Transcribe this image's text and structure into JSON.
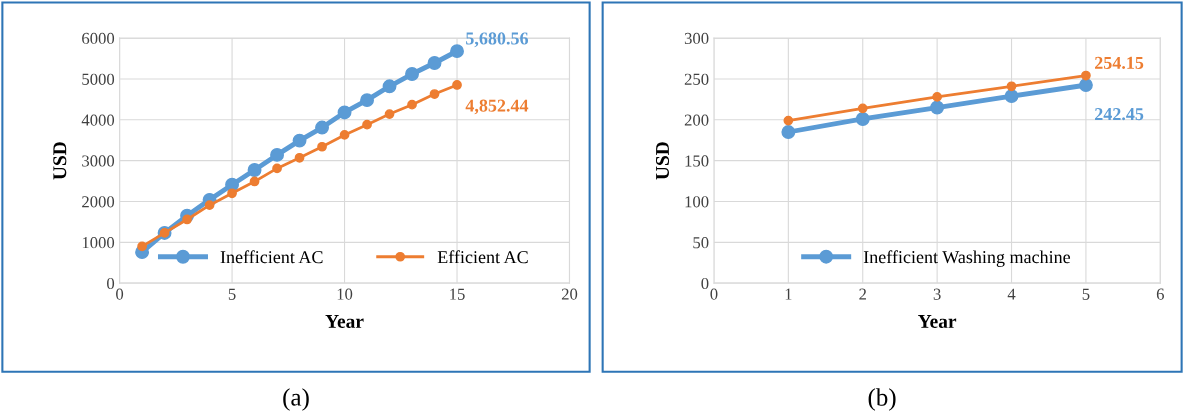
{
  "chart_data": [
    {
      "type": "line",
      "xlabel": "Year",
      "ylabel": "USD",
      "x": [
        1,
        2,
        3,
        4,
        5,
        6,
        7,
        8,
        9,
        10,
        11,
        12,
        13,
        14,
        15
      ],
      "series": [
        {
          "name": "Inefficient AC",
          "color": "#5b9bd5",
          "values": [
            760,
            1230,
            1650,
            2040,
            2410,
            2770,
            3140,
            3490,
            3810,
            4180,
            4480,
            4820,
            5120,
            5390,
            5680.56
          ],
          "value_labels": [
            null,
            null,
            null,
            null,
            null,
            null,
            null,
            null,
            null,
            null,
            null,
            null,
            null,
            null,
            "5,680.56"
          ]
        },
        {
          "name": "Efficient AC",
          "color": "#ed7d31",
          "values": [
            900,
            1230,
            1560,
            1910,
            2200,
            2490,
            2810,
            3070,
            3340,
            3630,
            3880,
            4140,
            4370,
            4630,
            4852.44
          ],
          "value_labels": [
            null,
            null,
            null,
            null,
            null,
            null,
            null,
            null,
            null,
            null,
            null,
            null,
            null,
            null,
            "4,852.44"
          ]
        }
      ],
      "xlim": [
        0,
        20
      ],
      "xticks": [
        0,
        5,
        10,
        15,
        20
      ],
      "ylim": [
        0,
        6000
      ],
      "yticks": [
        0,
        1000,
        2000,
        3000,
        4000,
        5000,
        6000
      ],
      "grid": true,
      "legend": "bottom",
      "marker": "circle",
      "line_style": "solid",
      "annotations": [
        "(a)"
      ]
    },
    {
      "type": "line",
      "xlabel": "Year",
      "ylabel": "USD",
      "x": [
        1,
        2,
        3,
        4,
        5
      ],
      "series": [
        {
          "name": "Inefficient Washing machine",
          "color": "#5b9bd5",
          "values": [
            185,
            201,
            215,
            229,
            242.45
          ],
          "value_labels": [
            null,
            null,
            null,
            null,
            "242.45"
          ]
        },
        {
          "color": "#ed7d31",
          "values": [
            199,
            214,
            228,
            241,
            254.15
          ],
          "value_labels": [
            null,
            null,
            null,
            null,
            "254.15"
          ]
        }
      ],
      "xlim": [
        0,
        6
      ],
      "xticks": [
        0,
        1,
        2,
        3,
        4,
        5,
        6
      ],
      "ylim": [
        0,
        300
      ],
      "yticks": [
        0,
        50,
        100,
        150,
        200,
        250,
        300
      ],
      "grid": true,
      "legend": "bottom",
      "marker": "circle",
      "line_style": "solid",
      "annotations": [
        "(b)"
      ]
    }
  ]
}
